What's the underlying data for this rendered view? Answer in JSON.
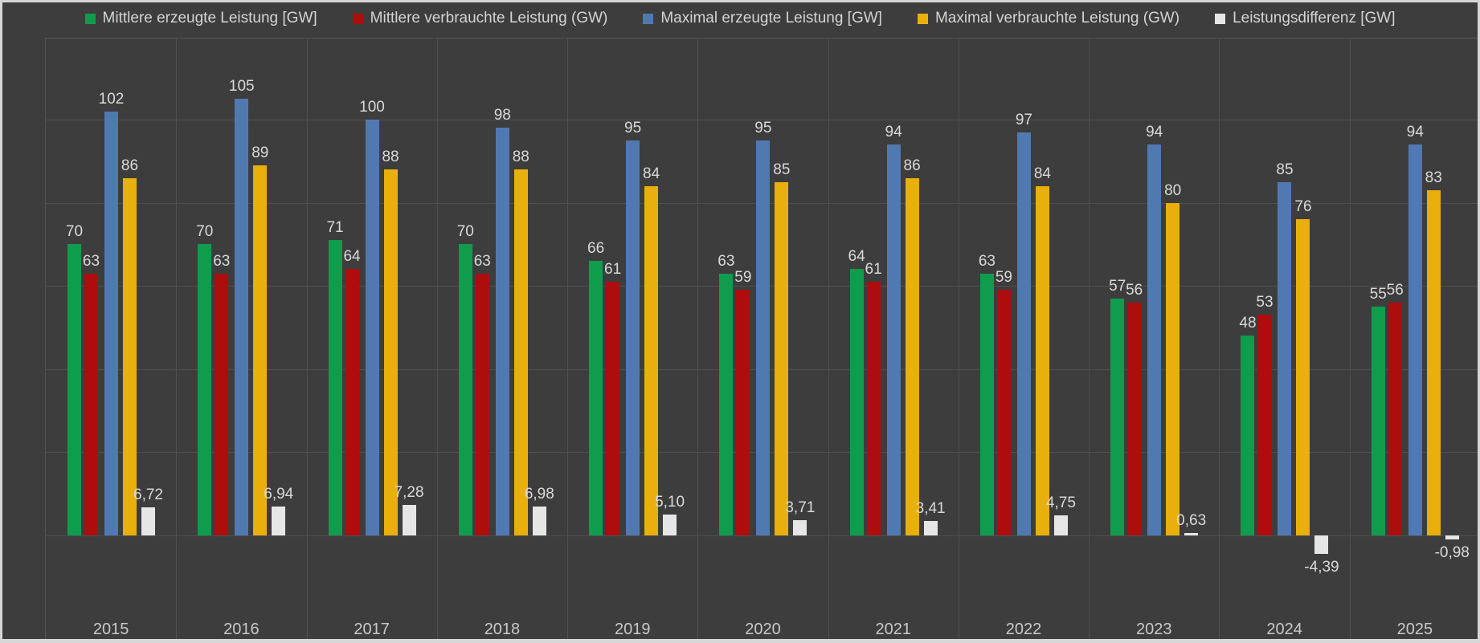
{
  "chart_data": {
    "type": "bar",
    "title": "",
    "xlabel": "",
    "ylabel": "",
    "categories": [
      "2015",
      "2016",
      "2017",
      "2018",
      "2019",
      "2020",
      "2021",
      "2022",
      "2023",
      "2024",
      "2025"
    ],
    "ylim": [
      -25,
      120
    ],
    "gridline_step_gw": 20,
    "grid": "on",
    "legend_position": "top",
    "series": [
      {
        "name": "Mittlere erzeugte Leistung [GW]",
        "color": "#109c4d",
        "values": [
          70,
          70,
          71,
          70,
          66,
          63,
          64,
          63,
          57,
          48,
          55
        ],
        "labels": [
          "70",
          "70",
          "71",
          "70",
          "66",
          "63",
          "64",
          "63",
          "57",
          "48",
          "55"
        ]
      },
      {
        "name": "Mittlere verbrauchte Leistung (GW)",
        "color": "#ad0d0d",
        "values": [
          63,
          63,
          64,
          63,
          61,
          59,
          61,
          59,
          56,
          53,
          56
        ],
        "labels": [
          "63",
          "63",
          "64",
          "63",
          "61",
          "59",
          "61",
          "59",
          "56",
          "53",
          "56"
        ]
      },
      {
        "name": "Maximal erzeugte Leistung [GW]",
        "color": "#5079b2",
        "values": [
          102,
          105,
          100,
          98,
          95,
          95,
          94,
          97,
          94,
          85,
          94
        ],
        "labels": [
          "102",
          "105",
          "100",
          "98",
          "95",
          "95",
          "94",
          "97",
          "94",
          "85",
          "94"
        ]
      },
      {
        "name": "Maximal verbrauchte Leistung (GW)",
        "color": "#e9af0c",
        "values": [
          86,
          89,
          88,
          88,
          84,
          85,
          86,
          84,
          80,
          76,
          83
        ],
        "labels": [
          "86",
          "89",
          "88",
          "88",
          "84",
          "85",
          "86",
          "84",
          "80",
          "76",
          "83"
        ]
      },
      {
        "name": "Leistungsdifferenz [GW]",
        "color": "#e6e6e6",
        "values": [
          6.72,
          6.94,
          7.28,
          6.98,
          5.1,
          3.71,
          3.41,
          4.75,
          0.63,
          -4.39,
          -0.98
        ],
        "labels": [
          "6,72",
          "6,94",
          "7,28",
          "6,98",
          "5,10",
          "3,71",
          "3,41",
          "4,75",
          "0,63",
          "-4,39",
          "-0,98"
        ]
      }
    ]
  },
  "colors": {
    "background": "#3e3d3d",
    "frame_border": "#d7d7d7",
    "gridline": "#4f4f4f",
    "value_text": "#d9d9d9",
    "axis_text": "#c9c9c9",
    "legend_text": "#d4d4d4"
  }
}
